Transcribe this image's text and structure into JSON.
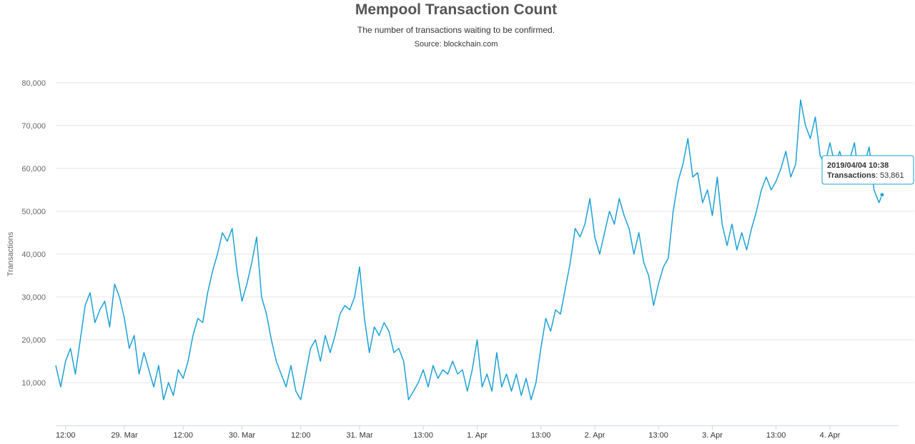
{
  "chart_data": {
    "type": "line",
    "title": "Mempool Transaction Count",
    "subtitle": "The number of transactions waiting to be confirmed.",
    "source": "Source: blockchain.com",
    "ylabel": "Transactions",
    "xlabel": "",
    "ylim": [
      0,
      80000
    ],
    "y_ticks": [
      10000,
      20000,
      30000,
      40000,
      50000,
      60000,
      70000,
      80000
    ],
    "y_tick_labels": [
      "10,000",
      "20,000",
      "30,000",
      "40,000",
      "50,000",
      "60,000",
      "70,000",
      "80,000"
    ],
    "xlim": [
      "2019-03-28 10:00",
      "2019-04-04 14:00"
    ],
    "x_ticks": [
      {
        "label": "12:00",
        "t": "2019-03-28 12:00"
      },
      {
        "label": "29. Mar",
        "t": "2019-03-29 00:00"
      },
      {
        "label": "12:00",
        "t": "2019-03-29 12:00"
      },
      {
        "label": "30. Mar",
        "t": "2019-03-30 00:00"
      },
      {
        "label": "12:00",
        "t": "2019-03-30 12:00"
      },
      {
        "label": "31. Mar",
        "t": "2019-03-31 00:00"
      },
      {
        "label": "13:00",
        "t": "2019-03-31 13:00"
      },
      {
        "label": "1. Apr",
        "t": "2019-04-01 00:00"
      },
      {
        "label": "13:00",
        "t": "2019-04-01 13:00"
      },
      {
        "label": "2. Apr",
        "t": "2019-04-02 00:00"
      },
      {
        "label": "13:00",
        "t": "2019-04-02 13:00"
      },
      {
        "label": "3. Apr",
        "t": "2019-04-03 00:00"
      },
      {
        "label": "13:00",
        "t": "2019-04-03 13:00"
      },
      {
        "label": "4. Apr",
        "t": "2019-04-04 00:00"
      }
    ],
    "series": [
      {
        "color": "#1ba1d6",
        "points": [
          [
            "2019-03-28 10:00",
            14000
          ],
          [
            "2019-03-28 11:00",
            9000
          ],
          [
            "2019-03-28 12:00",
            15000
          ],
          [
            "2019-03-28 13:00",
            18000
          ],
          [
            "2019-03-28 14:00",
            12000
          ],
          [
            "2019-03-28 15:00",
            20000
          ],
          [
            "2019-03-28 16:00",
            28000
          ],
          [
            "2019-03-28 17:00",
            31000
          ],
          [
            "2019-03-28 18:00",
            24000
          ],
          [
            "2019-03-28 19:00",
            27000
          ],
          [
            "2019-03-28 20:00",
            29000
          ],
          [
            "2019-03-28 21:00",
            23000
          ],
          [
            "2019-03-28 22:00",
            33000
          ],
          [
            "2019-03-28 23:00",
            30000
          ],
          [
            "2019-03-29 00:00",
            25000
          ],
          [
            "2019-03-29 01:00",
            18000
          ],
          [
            "2019-03-29 02:00",
            21000
          ],
          [
            "2019-03-29 03:00",
            12000
          ],
          [
            "2019-03-29 04:00",
            17000
          ],
          [
            "2019-03-29 05:00",
            13000
          ],
          [
            "2019-03-29 06:00",
            9000
          ],
          [
            "2019-03-29 07:00",
            14000
          ],
          [
            "2019-03-29 08:00",
            6000
          ],
          [
            "2019-03-29 09:00",
            10000
          ],
          [
            "2019-03-29 10:00",
            7000
          ],
          [
            "2019-03-29 11:00",
            13000
          ],
          [
            "2019-03-29 12:00",
            11000
          ],
          [
            "2019-03-29 13:00",
            15000
          ],
          [
            "2019-03-29 14:00",
            21000
          ],
          [
            "2019-03-29 15:00",
            25000
          ],
          [
            "2019-03-29 16:00",
            24000
          ],
          [
            "2019-03-29 17:00",
            31000
          ],
          [
            "2019-03-29 18:00",
            36000
          ],
          [
            "2019-03-29 19:00",
            40000
          ],
          [
            "2019-03-29 20:00",
            45000
          ],
          [
            "2019-03-29 21:00",
            43000
          ],
          [
            "2019-03-29 22:00",
            46000
          ],
          [
            "2019-03-29 23:00",
            36000
          ],
          [
            "2019-03-30 00:00",
            29000
          ],
          [
            "2019-03-30 01:00",
            33000
          ],
          [
            "2019-03-30 02:00",
            38000
          ],
          [
            "2019-03-30 03:00",
            44000
          ],
          [
            "2019-03-30 04:00",
            30000
          ],
          [
            "2019-03-30 05:00",
            26000
          ],
          [
            "2019-03-30 06:00",
            20000
          ],
          [
            "2019-03-30 07:00",
            15000
          ],
          [
            "2019-03-30 08:00",
            12000
          ],
          [
            "2019-03-30 09:00",
            9000
          ],
          [
            "2019-03-30 10:00",
            14000
          ],
          [
            "2019-03-30 11:00",
            8000
          ],
          [
            "2019-03-30 12:00",
            6000
          ],
          [
            "2019-03-30 13:00",
            12000
          ],
          [
            "2019-03-30 14:00",
            18000
          ],
          [
            "2019-03-30 15:00",
            20000
          ],
          [
            "2019-03-30 16:00",
            15000
          ],
          [
            "2019-03-30 17:00",
            21000
          ],
          [
            "2019-03-30 18:00",
            17000
          ],
          [
            "2019-03-30 19:00",
            21000
          ],
          [
            "2019-03-30 20:00",
            26000
          ],
          [
            "2019-03-30 21:00",
            28000
          ],
          [
            "2019-03-30 22:00",
            27000
          ],
          [
            "2019-03-30 23:00",
            30000
          ],
          [
            "2019-03-31 00:00",
            37000
          ],
          [
            "2019-03-31 01:00",
            25000
          ],
          [
            "2019-03-31 02:00",
            17000
          ],
          [
            "2019-03-31 03:00",
            23000
          ],
          [
            "2019-03-31 04:00",
            21000
          ],
          [
            "2019-03-31 05:00",
            24000
          ],
          [
            "2019-03-31 06:00",
            22000
          ],
          [
            "2019-03-31 07:00",
            17000
          ],
          [
            "2019-03-31 08:00",
            18000
          ],
          [
            "2019-03-31 09:00",
            15000
          ],
          [
            "2019-03-31 10:00",
            6000
          ],
          [
            "2019-03-31 11:00",
            8000
          ],
          [
            "2019-03-31 12:00",
            10000
          ],
          [
            "2019-03-31 13:00",
            13000
          ],
          [
            "2019-03-31 14:00",
            9000
          ],
          [
            "2019-03-31 15:00",
            14000
          ],
          [
            "2019-03-31 16:00",
            11000
          ],
          [
            "2019-03-31 17:00",
            13000
          ],
          [
            "2019-03-31 18:00",
            12000
          ],
          [
            "2019-03-31 19:00",
            15000
          ],
          [
            "2019-03-31 20:00",
            12000
          ],
          [
            "2019-03-31 21:00",
            13000
          ],
          [
            "2019-03-31 22:00",
            8000
          ],
          [
            "2019-03-31 23:00",
            13000
          ],
          [
            "2019-04-01 00:00",
            20000
          ],
          [
            "2019-04-01 01:00",
            9000
          ],
          [
            "2019-04-01 02:00",
            12000
          ],
          [
            "2019-04-01 03:00",
            8000
          ],
          [
            "2019-04-01 04:00",
            17000
          ],
          [
            "2019-04-01 05:00",
            9000
          ],
          [
            "2019-04-01 06:00",
            12000
          ],
          [
            "2019-04-01 07:00",
            8000
          ],
          [
            "2019-04-01 08:00",
            12000
          ],
          [
            "2019-04-01 09:00",
            7000
          ],
          [
            "2019-04-01 10:00",
            11000
          ],
          [
            "2019-04-01 11:00",
            6000
          ],
          [
            "2019-04-01 12:00",
            10000
          ],
          [
            "2019-04-01 13:00",
            18000
          ],
          [
            "2019-04-01 14:00",
            25000
          ],
          [
            "2019-04-01 15:00",
            22000
          ],
          [
            "2019-04-01 16:00",
            27000
          ],
          [
            "2019-04-01 17:00",
            26000
          ],
          [
            "2019-04-01 18:00",
            32000
          ],
          [
            "2019-04-01 19:00",
            38000
          ],
          [
            "2019-04-01 20:00",
            46000
          ],
          [
            "2019-04-01 21:00",
            44000
          ],
          [
            "2019-04-01 22:00",
            47000
          ],
          [
            "2019-04-01 23:00",
            53000
          ],
          [
            "2019-04-02 00:00",
            44000
          ],
          [
            "2019-04-02 01:00",
            40000
          ],
          [
            "2019-04-02 02:00",
            45000
          ],
          [
            "2019-04-02 03:00",
            50000
          ],
          [
            "2019-04-02 04:00",
            47000
          ],
          [
            "2019-04-02 05:00",
            53000
          ],
          [
            "2019-04-02 06:00",
            49000
          ],
          [
            "2019-04-02 07:00",
            46000
          ],
          [
            "2019-04-02 08:00",
            40000
          ],
          [
            "2019-04-02 09:00",
            45000
          ],
          [
            "2019-04-02 10:00",
            38000
          ],
          [
            "2019-04-02 11:00",
            35000
          ],
          [
            "2019-04-02 12:00",
            28000
          ],
          [
            "2019-04-02 13:00",
            33000
          ],
          [
            "2019-04-02 14:00",
            37000
          ],
          [
            "2019-04-02 15:00",
            39000
          ],
          [
            "2019-04-02 16:00",
            50000
          ],
          [
            "2019-04-02 17:00",
            57000
          ],
          [
            "2019-04-02 18:00",
            61000
          ],
          [
            "2019-04-02 19:00",
            67000
          ],
          [
            "2019-04-02 20:00",
            58000
          ],
          [
            "2019-04-02 21:00",
            59000
          ],
          [
            "2019-04-02 22:00",
            52000
          ],
          [
            "2019-04-02 23:00",
            55000
          ],
          [
            "2019-04-03 00:00",
            49000
          ],
          [
            "2019-04-03 01:00",
            58000
          ],
          [
            "2019-04-03 02:00",
            47000
          ],
          [
            "2019-04-03 03:00",
            42000
          ],
          [
            "2019-04-03 04:00",
            47000
          ],
          [
            "2019-04-03 05:00",
            41000
          ],
          [
            "2019-04-03 06:00",
            45000
          ],
          [
            "2019-04-03 07:00",
            41000
          ],
          [
            "2019-04-03 08:00",
            46000
          ],
          [
            "2019-04-03 09:00",
            50000
          ],
          [
            "2019-04-03 10:00",
            55000
          ],
          [
            "2019-04-03 11:00",
            58000
          ],
          [
            "2019-04-03 12:00",
            55000
          ],
          [
            "2019-04-03 13:00",
            57000
          ],
          [
            "2019-04-03 14:00",
            60000
          ],
          [
            "2019-04-03 15:00",
            64000
          ],
          [
            "2019-04-03 16:00",
            58000
          ],
          [
            "2019-04-03 17:00",
            61000
          ],
          [
            "2019-04-03 18:00",
            76000
          ],
          [
            "2019-04-03 19:00",
            70000
          ],
          [
            "2019-04-03 20:00",
            67000
          ],
          [
            "2019-04-03 21:00",
            72000
          ],
          [
            "2019-04-03 22:00",
            63000
          ],
          [
            "2019-04-03 23:00",
            61000
          ],
          [
            "2019-04-04 00:00",
            66000
          ],
          [
            "2019-04-04 01:00",
            61000
          ],
          [
            "2019-04-04 02:00",
            64000
          ],
          [
            "2019-04-04 03:00",
            60000
          ],
          [
            "2019-04-04 04:00",
            62000
          ],
          [
            "2019-04-04 05:00",
            66000
          ],
          [
            "2019-04-04 06:00",
            57000
          ],
          [
            "2019-04-04 07:00",
            61000
          ],
          [
            "2019-04-04 08:00",
            65000
          ],
          [
            "2019-04-04 09:00",
            55000
          ],
          [
            "2019-04-04 10:00",
            52000
          ],
          [
            "2019-04-04 10:38",
            53861
          ]
        ]
      }
    ],
    "grid": true,
    "legend": "none",
    "tooltip": {
      "date": "2019/04/04 10:38",
      "label": "Transactions",
      "value": ": 53,861",
      "x": "2019-04-04 10:38",
      "y": 53861
    }
  }
}
